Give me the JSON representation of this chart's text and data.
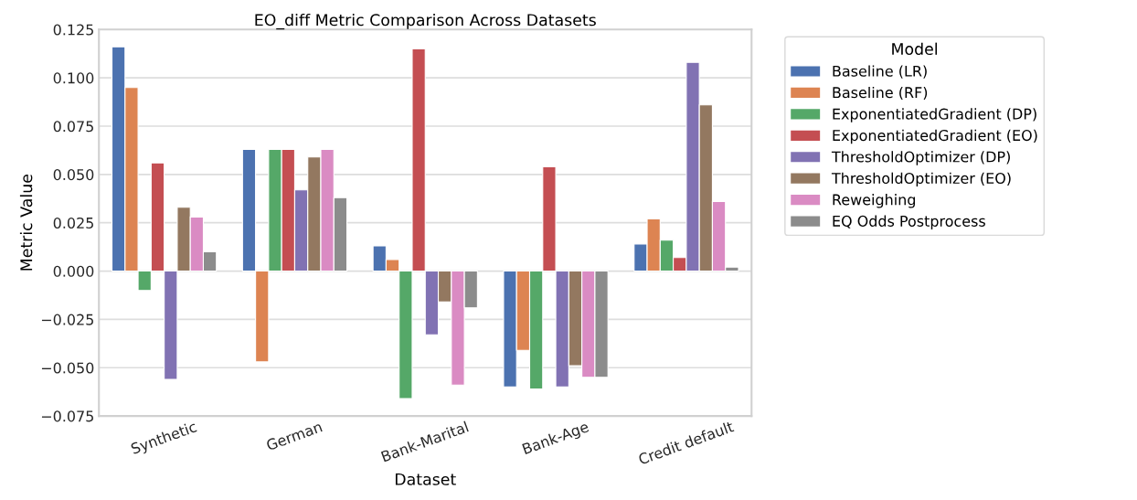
{
  "chart_data": {
    "type": "bar",
    "title": "EO_diff Metric Comparison Across Datasets",
    "xlabel": "Dataset",
    "ylabel": "Metric Value",
    "legend_title": "Model",
    "categories": [
      "Synthetic",
      "German",
      "Bank-Marital",
      "Bank-Age",
      "Credit default"
    ],
    "series": [
      {
        "name": "Baseline (LR)",
        "color": "#4c72b0",
        "values": [
          0.116,
          0.063,
          0.013,
          -0.06,
          0.014
        ]
      },
      {
        "name": "Baseline (RF)",
        "color": "#dd8452",
        "values": [
          0.095,
          -0.047,
          0.006,
          -0.041,
          0.027
        ]
      },
      {
        "name": "ExponentiatedGradient (DP)",
        "color": "#55a868",
        "values": [
          -0.01,
          0.063,
          -0.066,
          -0.061,
          0.016
        ]
      },
      {
        "name": "ExponentiatedGradient (EO)",
        "color": "#c44e52",
        "values": [
          0.056,
          0.063,
          0.115,
          0.054,
          0.007
        ]
      },
      {
        "name": "ThresholdOptimizer (DP)",
        "color": "#8172b3",
        "values": [
          -0.056,
          0.042,
          -0.033,
          -0.06,
          0.108
        ]
      },
      {
        "name": "ThresholdOptimizer (EO)",
        "color": "#937860",
        "values": [
          0.033,
          0.059,
          -0.016,
          -0.049,
          0.086
        ]
      },
      {
        "name": "Reweighing",
        "color": "#da8bc3",
        "values": [
          0.028,
          0.063,
          -0.059,
          -0.055,
          0.036
        ]
      },
      {
        "name": "EQ Odds Postprocess",
        "color": "#8c8c8c",
        "values": [
          0.01,
          0.038,
          -0.019,
          -0.055,
          0.002
        ]
      }
    ],
    "ylim": [
      -0.075,
      0.125
    ],
    "yticks": [
      {
        "value": -0.075,
        "label": "−0.075"
      },
      {
        "value": -0.05,
        "label": "−0.050"
      },
      {
        "value": -0.025,
        "label": "−0.025"
      },
      {
        "value": 0,
        "label": "0.000"
      },
      {
        "value": 0.025,
        "label": "0.025"
      },
      {
        "value": 0.05,
        "label": "0.050"
      },
      {
        "value": 0.075,
        "label": "0.075"
      },
      {
        "value": 0.1,
        "label": "0.100"
      },
      {
        "value": 0.125,
        "label": "0.125"
      }
    ],
    "grid": "y",
    "legend": "right"
  }
}
